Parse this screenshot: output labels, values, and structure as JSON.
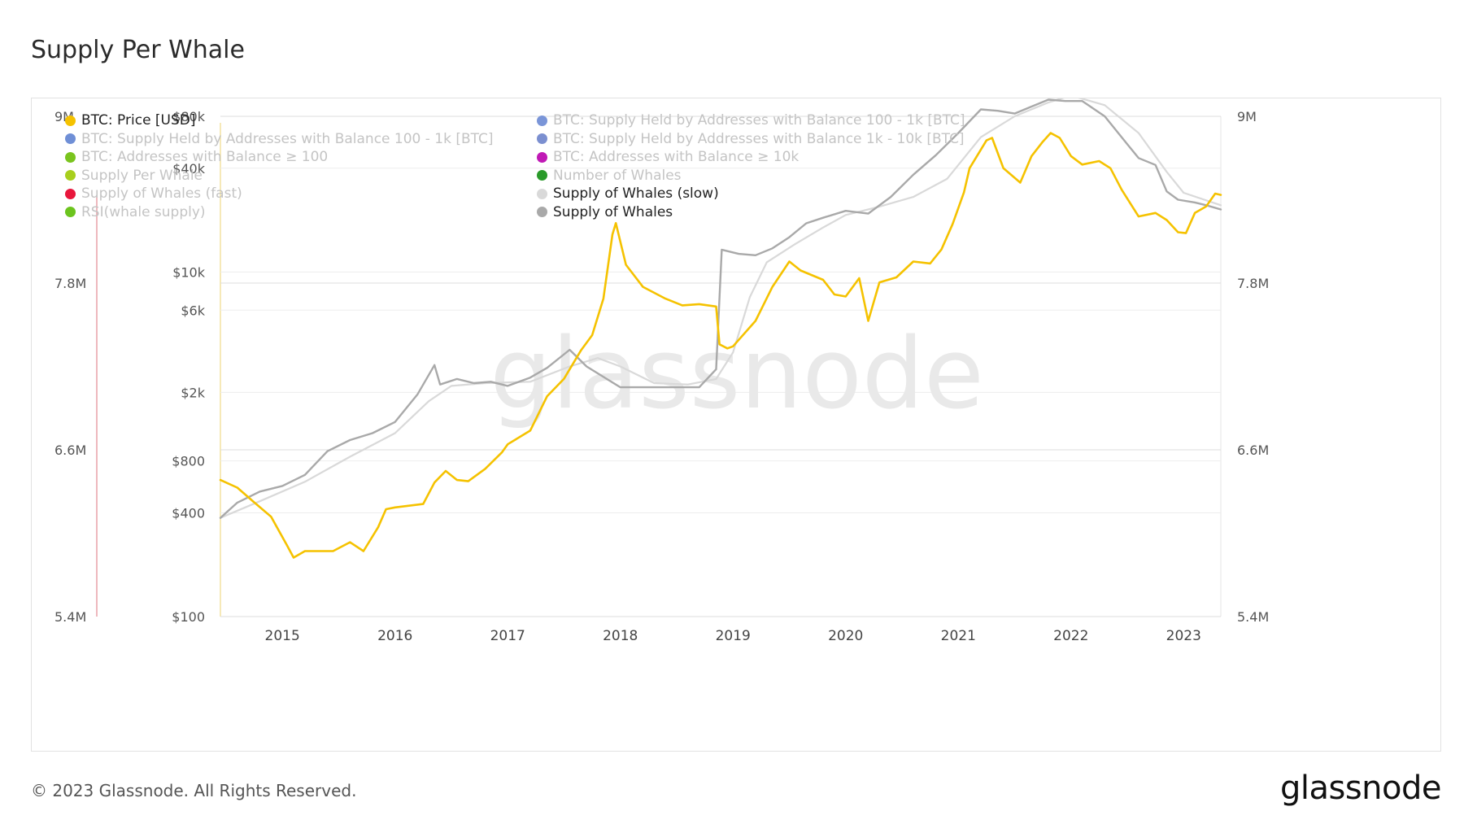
{
  "page": {
    "title": "Supply Per Whale",
    "copyright": "© 2023 Glassnode. All Rights Reserved.",
    "logo_text": "glassnode",
    "watermark": "glassnode"
  },
  "legend": {
    "col1": [
      {
        "label": "BTC: Price [USD]",
        "color": "#f5c200",
        "active": true
      },
      {
        "label": "BTC: Supply Held by Addresses with Balance 100 - 1k [BTC]",
        "color": "#6f8fd6",
        "active": false
      },
      {
        "label": "BTC: Addresses with Balance ≥ 100",
        "color": "#7ac41e",
        "active": false
      },
      {
        "label": "Supply Per Whale",
        "color": "#a8cf1d",
        "active": false
      },
      {
        "label": "Supply of Whales (fast)",
        "color": "#e8173c",
        "active": false
      },
      {
        "label": "RSI(whale supply)",
        "color": "#6cc41e",
        "active": false
      }
    ],
    "col2": [
      {
        "label": "BTC: Supply Held by Addresses with Balance 100 - 1k [BTC]",
        "color": "#7a95d8",
        "active": false
      },
      {
        "label": "BTC: Supply Held by Addresses with Balance 1k - 10k [BTC]",
        "color": "#7b8fd0",
        "active": false
      },
      {
        "label": "BTC: Addresses with Balance ≥ 10k",
        "color": "#c019b5",
        "active": false
      },
      {
        "label": "Number of Whales",
        "color": "#2a9a2a",
        "active": false
      },
      {
        "label": "Supply of Whales (slow)",
        "color": "#d9d9d9",
        "active": true
      },
      {
        "label": "Supply of Whales",
        "color": "#a9a9a9",
        "active": true
      }
    ]
  },
  "chart_data": {
    "type": "line",
    "colors": {
      "price": "#f5c200",
      "whales": "#a9a9a9",
      "whales_slow": "#d9d9d9",
      "rsi_marker": "#e8a0a8",
      "price_axis_line": "#f3e2a0"
    },
    "x_ticks": [
      "2015",
      "2016",
      "2017",
      "2018",
      "2019",
      "2020",
      "2021",
      "2022",
      "2023"
    ],
    "xlim": [
      2014.45,
      2023.33
    ],
    "y_left_price": {
      "ticks": [
        "$100",
        "$400",
        "$800",
        "$2k",
        "$6k",
        "$10k",
        "$40k",
        "$80k"
      ],
      "tick_values": [
        100,
        400,
        800,
        2000,
        6000,
        10000,
        40000,
        80000
      ],
      "scale": "log",
      "ylim": [
        100,
        80000
      ]
    },
    "y_left_supply": {
      "ticks": [
        "5.4M",
        "6.6M",
        "7.8M",
        "9M"
      ],
      "tick_values": [
        5400000,
        6600000,
        7800000,
        9000000
      ],
      "ylim": [
        5400000,
        9000000
      ]
    },
    "y_right": {
      "ticks": [
        "5.4M",
        "6.6M",
        "7.8M",
        "9M"
      ],
      "tick_values": [
        5400000,
        6600000,
        7800000,
        9000000
      ],
      "ylim": [
        5400000,
        9000000
      ]
    },
    "series": [
      {
        "name": "BTC: Price [USD]",
        "axis": "price",
        "x": [
          2014.45,
          2014.6,
          2014.75,
          2014.9,
          2015.04,
          2015.1,
          2015.2,
          2015.45,
          2015.6,
          2015.72,
          2015.85,
          2015.92,
          2016.0,
          2016.25,
          2016.35,
          2016.45,
          2016.55,
          2016.65,
          2016.8,
          2016.95,
          2017.0,
          2017.2,
          2017.35,
          2017.5,
          2017.65,
          2017.75,
          2017.85,
          2017.93,
          2017.96,
          2018.05,
          2018.2,
          2018.4,
          2018.55,
          2018.7,
          2018.85,
          2018.88,
          2018.95,
          2019.0,
          2019.2,
          2019.35,
          2019.5,
          2019.6,
          2019.8,
          2019.9,
          2020.0,
          2020.12,
          2020.2,
          2020.3,
          2020.45,
          2020.6,
          2020.75,
          2020.85,
          2020.95,
          2021.05,
          2021.1,
          2021.25,
          2021.3,
          2021.4,
          2021.55,
          2021.65,
          2021.75,
          2021.82,
          2021.9,
          2022.0,
          2022.1,
          2022.25,
          2022.35,
          2022.45,
          2022.6,
          2022.75,
          2022.85,
          2022.95,
          2023.02,
          2023.1,
          2023.2,
          2023.28,
          2023.33
        ],
        "y": [
          620,
          560,
          460,
          380,
          260,
          220,
          240,
          240,
          270,
          240,
          330,
          420,
          430,
          450,
          600,
          700,
          620,
          610,
          720,
          900,
          1000,
          1200,
          1900,
          2400,
          3500,
          4300,
          7000,
          16500,
          19200,
          11000,
          8200,
          7000,
          6400,
          6500,
          6300,
          3800,
          3600,
          3700,
          5200,
          8200,
          11500,
          10200,
          9000,
          7400,
          7200,
          9200,
          5200,
          8700,
          9300,
          11500,
          11200,
          13500,
          19000,
          29000,
          40000,
          58000,
          60000,
          40000,
          33000,
          47000,
          57000,
          64000,
          60000,
          47000,
          42000,
          44000,
          40000,
          30000,
          21000,
          22000,
          20000,
          17000,
          16800,
          22000,
          24000,
          28500,
          28000
        ]
      },
      {
        "name": "Supply of Whales",
        "axis": "supply",
        "x": [
          2014.45,
          2014.6,
          2014.8,
          2015.0,
          2015.2,
          2015.4,
          2015.6,
          2015.8,
          2016.0,
          2016.2,
          2016.35,
          2016.4,
          2016.55,
          2016.7,
          2016.85,
          2017.0,
          2017.2,
          2017.35,
          2017.55,
          2017.7,
          2017.9,
          2018.0,
          2018.2,
          2018.45,
          2018.7,
          2018.85,
          2018.9,
          2019.05,
          2019.2,
          2019.35,
          2019.5,
          2019.65,
          2019.8,
          2020.0,
          2020.2,
          2020.4,
          2020.6,
          2020.8,
          2021.0,
          2021.2,
          2021.35,
          2021.5,
          2021.65,
          2021.8,
          2021.95,
          2022.1,
          2022.3,
          2022.5,
          2022.6,
          2022.75,
          2022.85,
          2022.95,
          2023.1,
          2023.2,
          2023.33
        ],
        "y": [
          6110000,
          6220000,
          6300000,
          6340000,
          6420000,
          6590000,
          6670000,
          6720000,
          6800000,
          7000000,
          7210000,
          7070000,
          7110000,
          7080000,
          7090000,
          7060000,
          7120000,
          7190000,
          7320000,
          7200000,
          7100000,
          7050000,
          7050000,
          7050000,
          7050000,
          7180000,
          8040000,
          8010000,
          8000000,
          8050000,
          8130000,
          8230000,
          8270000,
          8320000,
          8300000,
          8420000,
          8580000,
          8720000,
          8880000,
          9050000,
          9040000,
          9020000,
          9070000,
          9120000,
          9110000,
          9110000,
          9000000,
          8800000,
          8700000,
          8650000,
          8460000,
          8400000,
          8380000,
          8360000,
          8330000
        ]
      },
      {
        "name": "Supply of Whales (slow)",
        "axis": "supply",
        "x": [
          2014.45,
          2014.8,
          2015.2,
          2015.6,
          2016.0,
          2016.3,
          2016.5,
          2016.8,
          2017.2,
          2017.55,
          2017.8,
          2018.0,
          2018.3,
          2018.6,
          2018.85,
          2019.0,
          2019.15,
          2019.3,
          2019.55,
          2019.8,
          2020.0,
          2020.3,
          2020.6,
          2020.9,
          2021.2,
          2021.5,
          2021.8,
          2022.0,
          2022.3,
          2022.6,
          2022.85,
          2023.0,
          2023.33
        ],
        "y": [
          6110000,
          6230000,
          6370000,
          6550000,
          6720000,
          6950000,
          7060000,
          7080000,
          7090000,
          7200000,
          7260000,
          7200000,
          7080000,
          7070000,
          7110000,
          7300000,
          7700000,
          7950000,
          8080000,
          8200000,
          8290000,
          8350000,
          8420000,
          8550000,
          8850000,
          9000000,
          9100000,
          9150000,
          9080000,
          8880000,
          8600000,
          8450000,
          8360000
        ]
      }
    ]
  }
}
